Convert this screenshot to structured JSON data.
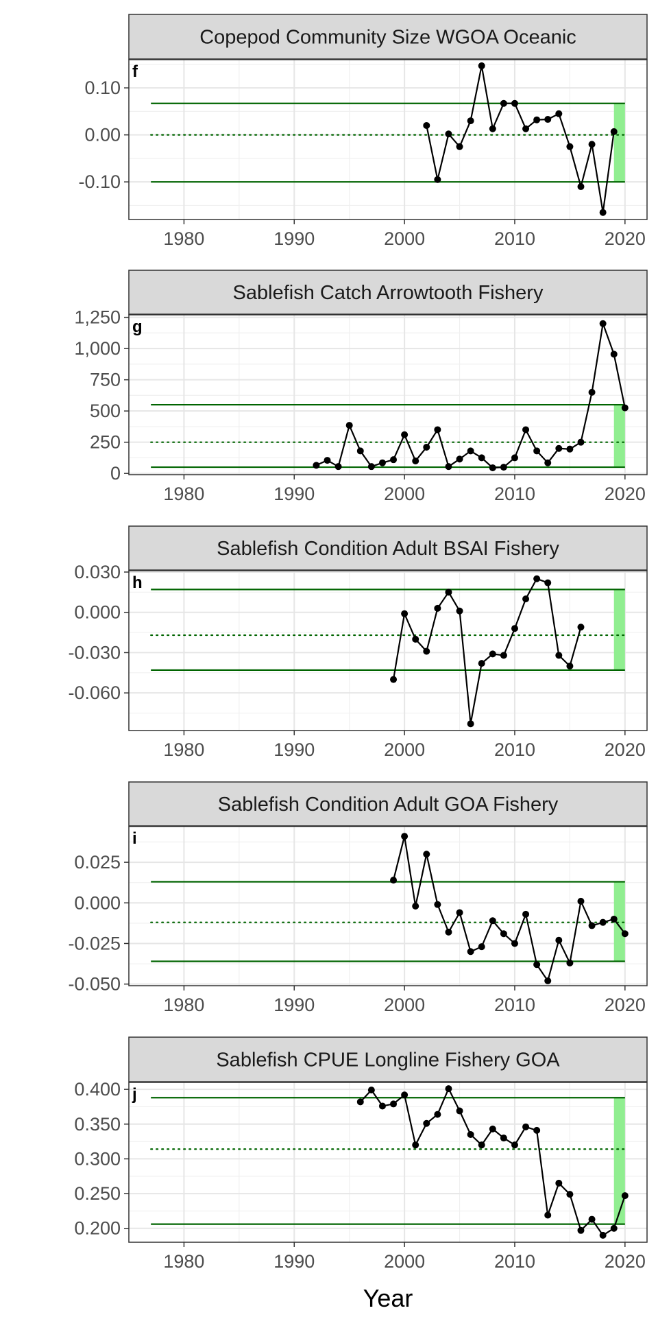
{
  "x_axis_title": "Year",
  "chart_data": [
    {
      "type": "line",
      "panel_tag": "f",
      "title": "Copepod Community Size WGOA Oceanic",
      "xlim": [
        1975,
        2022
      ],
      "ylim": [
        -0.18,
        0.16
      ],
      "x_ticks": [
        1980,
        1990,
        2000,
        2010,
        2020
      ],
      "x_tick_labels": [
        "1980",
        "1990",
        "2000",
        "2010",
        "2020"
      ],
      "y_ticks": [
        -0.1,
        0.0,
        0.1
      ],
      "y_tick_labels": [
        "-0.10",
        "0.00",
        "0.10"
      ],
      "x_range_lines": [
        1977,
        2020
      ],
      "mean": 0.0,
      "upper": 0.067,
      "lower": -0.1,
      "highlight_x": [
        2019,
        2020
      ],
      "highlight_color": "#90ee90",
      "line_color": "#006400",
      "series": [
        {
          "x": [
            2002,
            2003,
            2004,
            2005,
            2006,
            2007,
            2008,
            2009,
            2010,
            2011,
            2012,
            2013,
            2014,
            2015,
            2016,
            2017,
            2018,
            2019
          ],
          "y": [
            0.02,
            -0.095,
            0.002,
            -0.025,
            0.03,
            0.147,
            0.013,
            0.067,
            0.067,
            0.013,
            0.032,
            0.033,
            0.045,
            -0.025,
            -0.11,
            -0.02,
            -0.165,
            0.007
          ]
        }
      ]
    },
    {
      "type": "line",
      "panel_tag": "g",
      "title": "Sablefish Catch Arrowtooth Fishery",
      "xlim": [
        1975,
        2022
      ],
      "ylim": [
        -10,
        1270
      ],
      "x_ticks": [
        1980,
        1990,
        2000,
        2010,
        2020
      ],
      "x_tick_labels": [
        "1980",
        "1990",
        "2000",
        "2010",
        "2020"
      ],
      "y_ticks": [
        0,
        250,
        500,
        750,
        1000,
        1250
      ],
      "y_tick_labels": [
        "0",
        "250",
        "500",
        "750",
        "1,000",
        "1,250"
      ],
      "x_range_lines": [
        1977,
        2020
      ],
      "mean": 250,
      "upper": 550,
      "lower": 50,
      "highlight_x": [
        2019,
        2020
      ],
      "highlight_color": "#90ee90",
      "line_color": "#006400",
      "series": [
        {
          "x": [
            1992,
            1993,
            1994,
            1995,
            1996,
            1997,
            1998,
            1999,
            2000,
            2001,
            2002,
            2003,
            2004,
            2005,
            2006,
            2007,
            2008,
            2009,
            2010,
            2011,
            2012,
            2013,
            2014,
            2015,
            2016,
            2017,
            2018,
            2019,
            2020
          ],
          "y": [
            65,
            105,
            55,
            385,
            180,
            55,
            85,
            110,
            310,
            100,
            210,
            350,
            55,
            115,
            180,
            125,
            45,
            50,
            125,
            350,
            180,
            85,
            200,
            195,
            250,
            650,
            1200,
            955,
            525
          ]
        }
      ]
    },
    {
      "type": "line",
      "panel_tag": "h",
      "title": "Sablefish Condition Adult BSAI Fishery",
      "xlim": [
        1975,
        2022
      ],
      "ylim": [
        -0.088,
        0.031
      ],
      "x_ticks": [
        1980,
        1990,
        2000,
        2010,
        2020
      ],
      "x_tick_labels": [
        "1980",
        "1990",
        "2000",
        "2010",
        "2020"
      ],
      "y_ticks": [
        -0.06,
        -0.03,
        0.0,
        0.03
      ],
      "y_tick_labels": [
        "-0.060",
        "-0.030",
        "0.000",
        "0.030"
      ],
      "x_range_lines": [
        1977,
        2020
      ],
      "mean": -0.017,
      "upper": 0.017,
      "lower": -0.043,
      "highlight_x": [
        2019,
        2020
      ],
      "highlight_color": "#90ee90",
      "line_color": "#006400",
      "series": [
        {
          "x": [
            1999,
            2000,
            2001,
            2002,
            2003,
            2004,
            2005,
            2006,
            2007,
            2008,
            2009,
            2010,
            2011,
            2012,
            2013,
            2014,
            2015,
            2016
          ],
          "y": [
            -0.05,
            -0.001,
            -0.02,
            -0.029,
            0.003,
            0.015,
            0.001,
            -0.083,
            -0.038,
            -0.031,
            -0.032,
            -0.012,
            0.01,
            0.025,
            0.022,
            -0.032,
            -0.04,
            -0.011
          ]
        }
      ]
    },
    {
      "type": "line",
      "panel_tag": "i",
      "title": "Sablefish Condition Adult GOA Fishery",
      "xlim": [
        1975,
        2022
      ],
      "ylim": [
        -0.051,
        0.047
      ],
      "x_ticks": [
        1980,
        1990,
        2000,
        2010,
        2020
      ],
      "x_tick_labels": [
        "1980",
        "1990",
        "2000",
        "2010",
        "2020"
      ],
      "y_ticks": [
        -0.05,
        -0.025,
        0.0,
        0.025
      ],
      "y_tick_labels": [
        "-0.050",
        "-0.025",
        "0.000",
        "0.025"
      ],
      "x_range_lines": [
        1977,
        2020
      ],
      "mean": -0.012,
      "upper": 0.013,
      "lower": -0.036,
      "highlight_x": [
        2019,
        2020
      ],
      "highlight_color": "#90ee90",
      "line_color": "#006400",
      "series": [
        {
          "x": [
            1999,
            2000,
            2001,
            2002,
            2003,
            2004,
            2005,
            2006,
            2007,
            2008,
            2009,
            2010,
            2011,
            2012,
            2013,
            2014,
            2015,
            2016,
            2017,
            2018,
            2019,
            2020
          ],
          "y": [
            0.014,
            0.041,
            -0.002,
            0.03,
            -0.001,
            -0.018,
            -0.006,
            -0.03,
            -0.027,
            -0.011,
            -0.019,
            -0.025,
            -0.007,
            -0.038,
            -0.048,
            -0.023,
            -0.037,
            0.001,
            -0.014,
            -0.012,
            -0.01,
            -0.019
          ]
        }
      ]
    },
    {
      "type": "line",
      "panel_tag": "j",
      "title": "Sablefish CPUE Longline Fishery GOA",
      "xlim": [
        1975,
        2022
      ],
      "ylim": [
        0.18,
        0.41
      ],
      "x_ticks": [
        1980,
        1990,
        2000,
        2010,
        2020
      ],
      "x_tick_labels": [
        "1980",
        "1990",
        "2000",
        "2010",
        "2020"
      ],
      "y_ticks": [
        0.2,
        0.25,
        0.3,
        0.35,
        0.4
      ],
      "y_tick_labels": [
        "0.200",
        "0.250",
        "0.300",
        "0.350",
        "0.400"
      ],
      "x_range_lines": [
        1977,
        2020
      ],
      "mean": 0.314,
      "upper": 0.388,
      "lower": 0.206,
      "highlight_x": [
        2019,
        2020
      ],
      "highlight_color": "#90ee90",
      "line_color": "#006400",
      "series": [
        {
          "x": [
            1996,
            1997,
            1998,
            1999,
            2000,
            2001,
            2002,
            2003,
            2004,
            2005,
            2006,
            2007,
            2008,
            2009,
            2010,
            2011,
            2012,
            2013,
            2014,
            2015,
            2016,
            2017,
            2018,
            2019,
            2020
          ],
          "y": [
            0.382,
            0.399,
            0.376,
            0.379,
            0.392,
            0.32,
            0.351,
            0.364,
            0.401,
            0.369,
            0.335,
            0.32,
            0.343,
            0.33,
            0.32,
            0.346,
            0.341,
            0.219,
            0.265,
            0.249,
            0.197,
            0.213,
            0.19,
            0.2,
            0.247
          ]
        }
      ]
    }
  ]
}
